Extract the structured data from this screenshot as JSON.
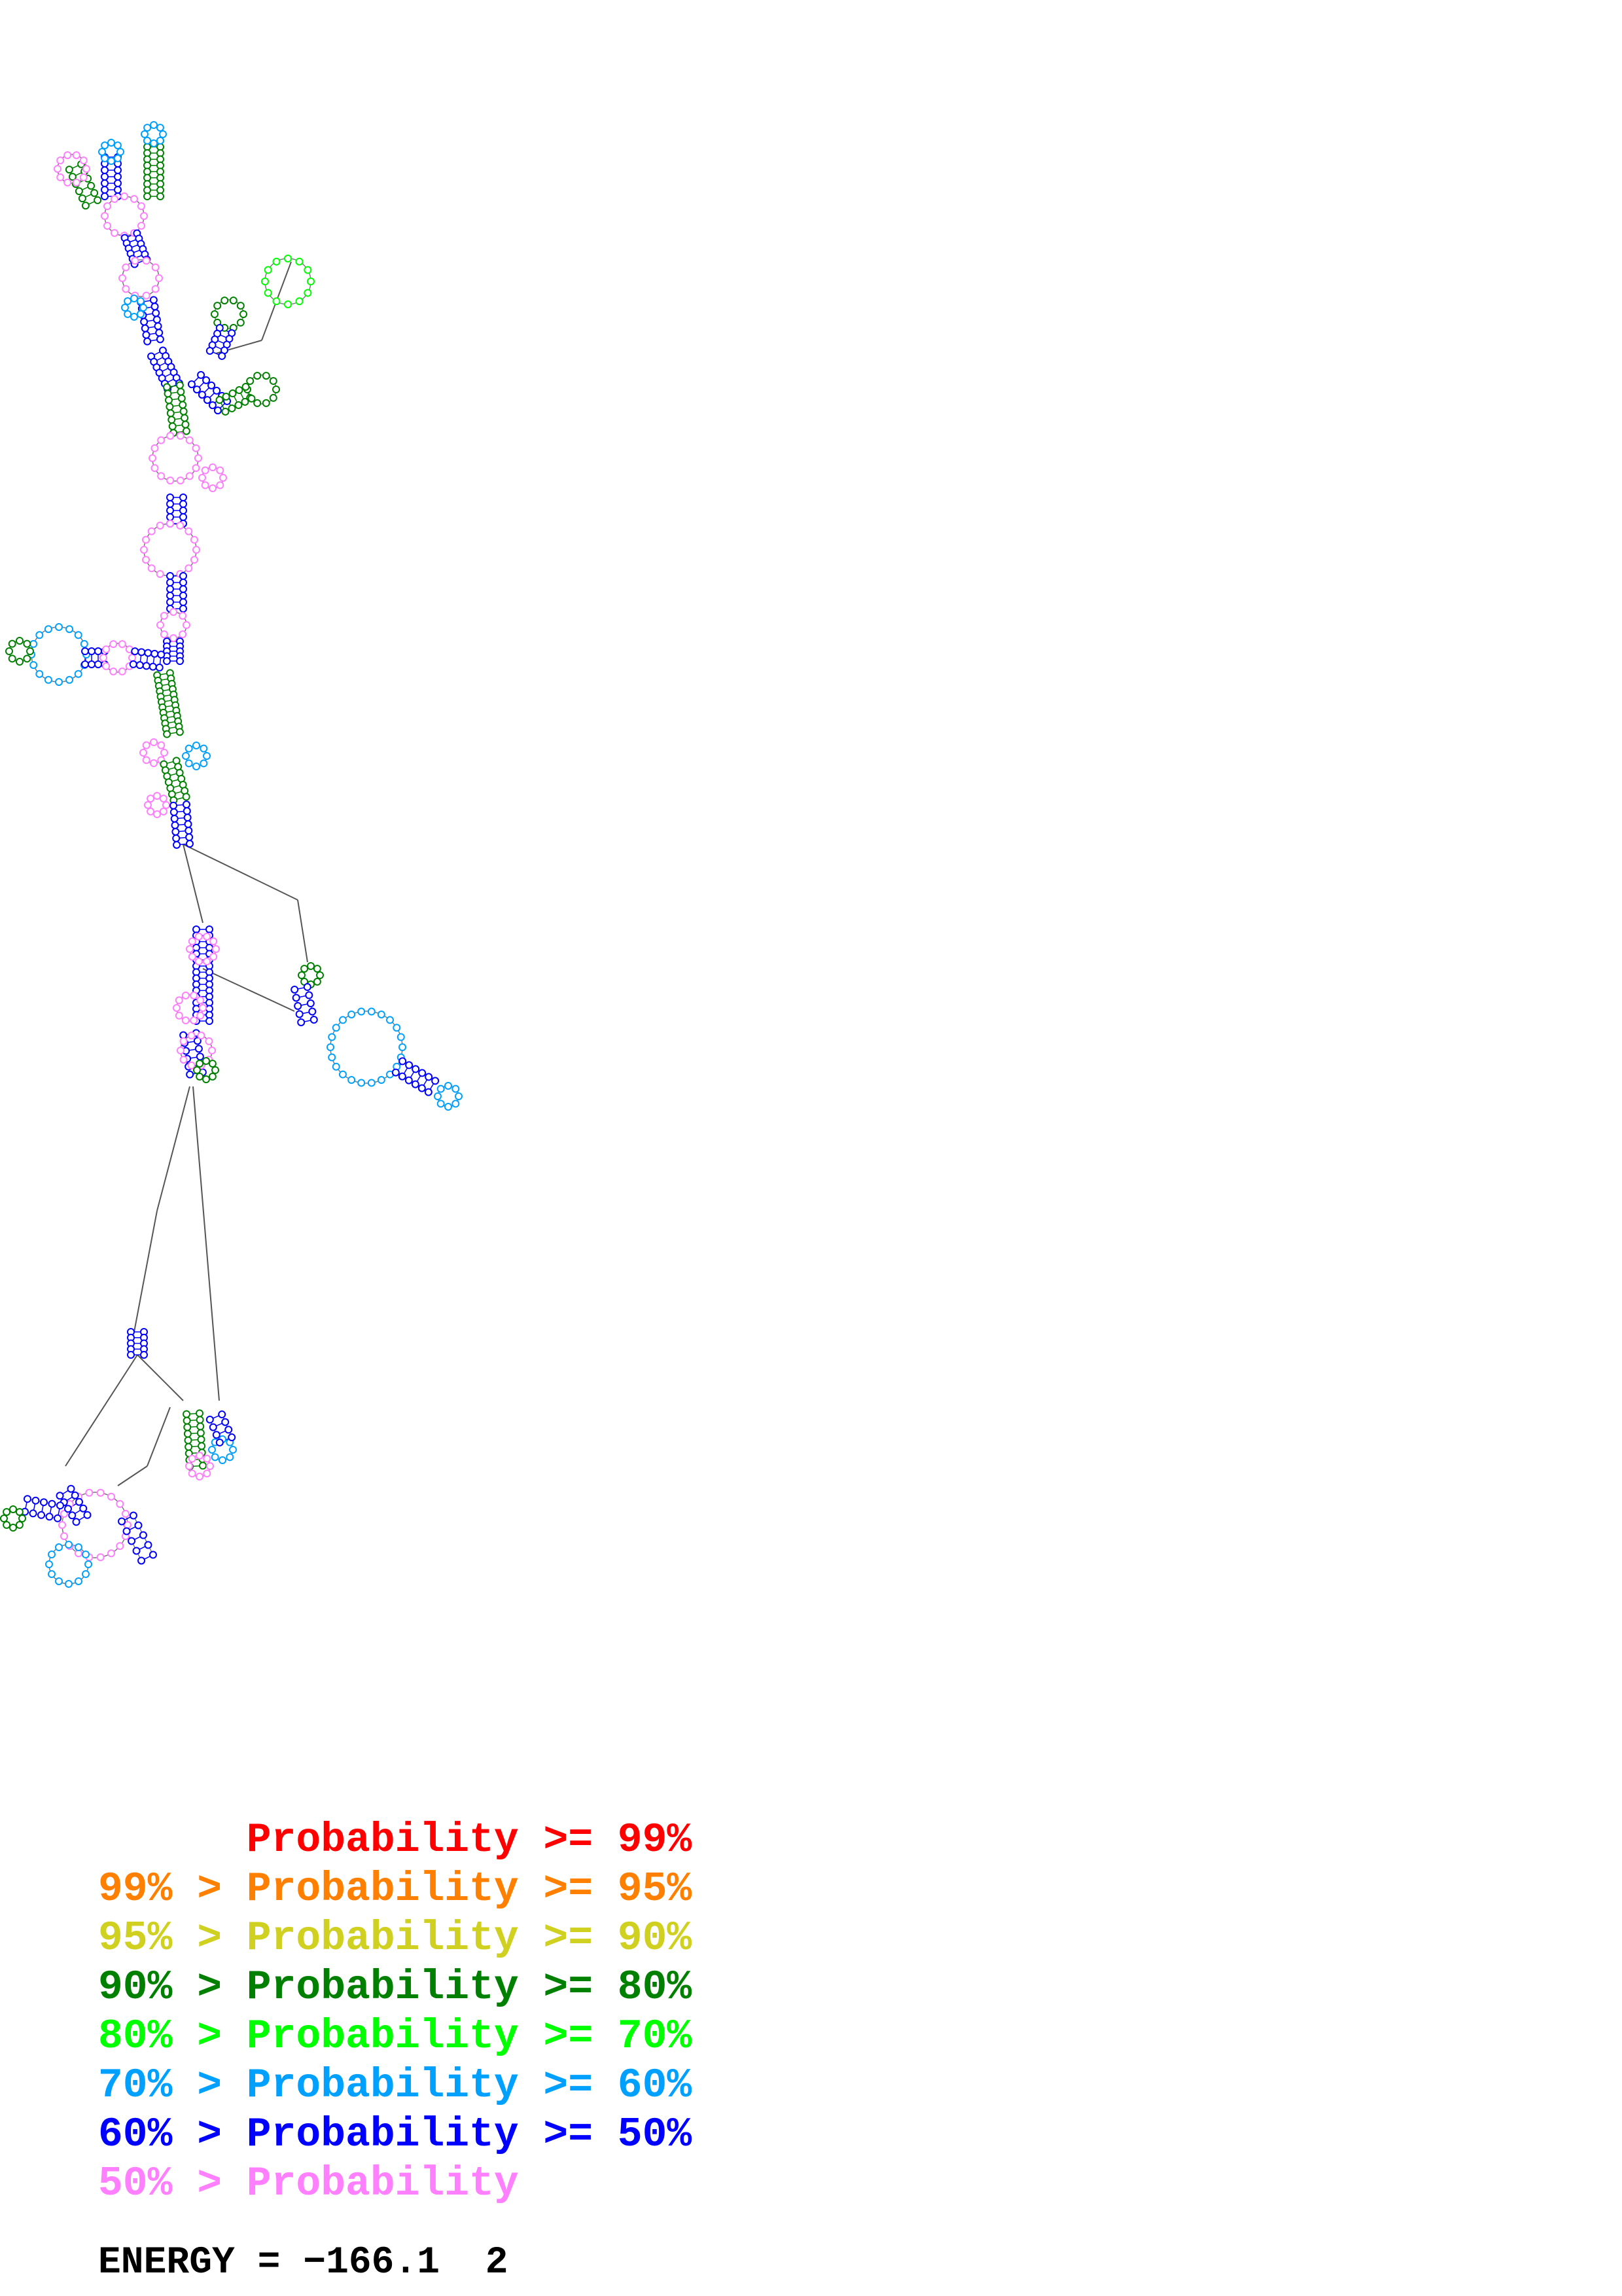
{
  "legend": [
    {
      "lower": "",
      "label": "Probability",
      "upper": ">= 99%",
      "color": "#ff0000"
    },
    {
      "lower": "99% >",
      "label": "Probability",
      "upper": ">= 95%",
      "color": "#ff8000"
    },
    {
      "lower": "95% >",
      "label": "Probability",
      "upper": ">= 90%",
      "color": "#d0d020"
    },
    {
      "lower": "90% >",
      "label": "Probability",
      "upper": ">= 80%",
      "color": "#008000"
    },
    {
      "lower": "80% >",
      "label": "Probability",
      "upper": ">= 70%",
      "color": "#00ff00"
    },
    {
      "lower": "70% >",
      "label": "Probability",
      "upper": ">= 60%",
      "color": "#00a0ff"
    },
    {
      "lower": "60% >",
      "label": "Probability",
      "upper": ">= 50%",
      "color": "#0000ff"
    },
    {
      "lower": "50% >",
      "label": "Probability",
      "upper": "",
      "color": "#ff80ff"
    }
  ],
  "energy": {
    "label": "ENERGY = ",
    "value": "−166.1",
    "suffix": "2"
  },
  "structure_colors": {
    "line": "#555555",
    "paired_high": "#008000",
    "paired_mid": "#00ff00",
    "paired_low": "#0000ff",
    "unpaired": "#ff80ff",
    "unpaired_alt": "#00a0ff"
  }
}
